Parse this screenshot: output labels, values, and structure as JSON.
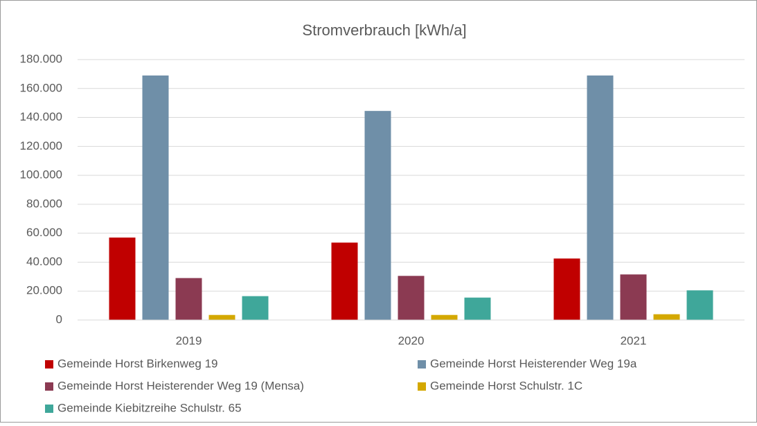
{
  "chart_data": {
    "type": "bar",
    "title": "Stromverbrauch [kWh/a]",
    "categories": [
      "2019",
      "2020",
      "2021"
    ],
    "series": [
      {
        "name": "Gemeinde Horst Birkenweg 19",
        "color": "#c00000",
        "values": [
          57000,
          53500,
          42500
        ]
      },
      {
        "name": "Gemeinde Horst Heisterender Weg 19a",
        "color": "#6f8fa8",
        "values": [
          169000,
          144500,
          169000
        ]
      },
      {
        "name": "Gemeinde Horst Heisterender Weg 19 (Mensa)",
        "color": "#8b3a52",
        "values": [
          29000,
          30500,
          31500
        ]
      },
      {
        "name": "Gemeinde Horst Schulstr. 1C",
        "color": "#d4a800",
        "values": [
          3500,
          3500,
          4000
        ]
      },
      {
        "name": "Gemeinde Kiebitzreihe Schulstr. 65",
        "color": "#3fa79a",
        "values": [
          16500,
          15500,
          20500
        ]
      }
    ],
    "ylim": [
      0,
      180000
    ],
    "yticks": [
      0,
      {
        "value": 20000,
        "label": "20.000"
      },
      {
        "value": 40000,
        "label": "40.000"
      },
      {
        "value": 60000,
        "label": "60.000"
      },
      {
        "value": 80000,
        "label": "80.000"
      },
      {
        "value": 100000,
        "label": "100.000"
      },
      {
        "value": 120000,
        "label": "120.000"
      },
      {
        "value": 140000,
        "label": "140.000"
      },
      {
        "value": 160000,
        "label": "160.000"
      },
      {
        "value": 180000,
        "label": "180.000"
      }
    ],
    "grid": true
  }
}
